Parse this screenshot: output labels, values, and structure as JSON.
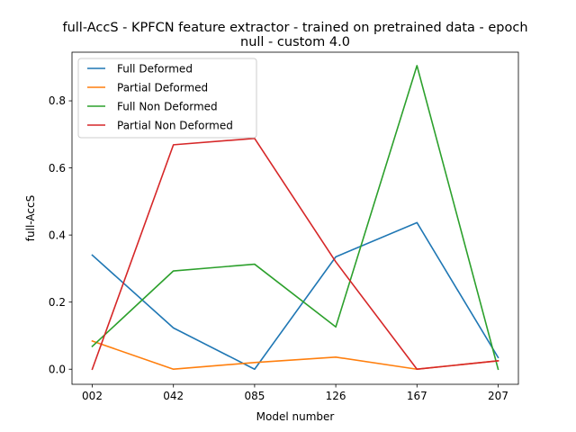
{
  "chart_data": {
    "type": "line",
    "title_line1": "full-AccS - KPFCN feature extractor -  trained on pretrained data -  epoch",
    "title_line2": "null - custom 4.0",
    "xlabel": "Model number",
    "ylabel": "full-AccS",
    "categories": [
      "002",
      "042",
      "085",
      "126",
      "167",
      "207"
    ],
    "ylim": [
      -0.045,
      0.945
    ],
    "yticks": [
      0.0,
      0.2,
      0.4,
      0.6,
      0.8
    ],
    "ytick_labels": [
      "0.0",
      "0.2",
      "0.4",
      "0.6",
      "0.8"
    ],
    "grid": false,
    "legend_position": "upper-left",
    "series": [
      {
        "name": "Full Deformed",
        "color": "#1f77b4",
        "values": [
          0.34,
          0.123,
          0.0,
          0.335,
          0.437,
          0.035
        ]
      },
      {
        "name": "Partial Deformed",
        "color": "#ff7f0e",
        "values": [
          0.084,
          0.0,
          0.02,
          0.036,
          0.0,
          0.025
        ]
      },
      {
        "name": "Full Non Deformed",
        "color": "#2ca02c",
        "values": [
          0.068,
          0.293,
          0.313,
          0.126,
          0.905,
          0.0
        ]
      },
      {
        "name": "Partial Non Deformed",
        "color": "#d62728",
        "values": [
          0.0,
          0.669,
          0.688,
          0.32,
          0.0,
          0.025
        ]
      }
    ]
  }
}
